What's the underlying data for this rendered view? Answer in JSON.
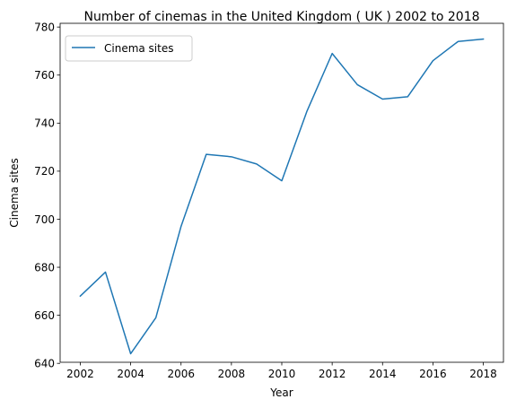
{
  "chart_data": {
    "type": "line",
    "title": "Number of cinemas in the United Kingdom ( UK ) 2002 to 2018",
    "xlabel": "Year",
    "ylabel": "Cinema sites",
    "x": [
      2002,
      2003,
      2004,
      2005,
      2006,
      2007,
      2008,
      2009,
      2010,
      2011,
      2012,
      2013,
      2014,
      2015,
      2016,
      2017,
      2018
    ],
    "series": [
      {
        "name": "Cinema sites",
        "color": "#1f77b4",
        "values": [
          668,
          678,
          644,
          659,
          697,
          727,
          726,
          723,
          716,
          745,
          769,
          756,
          750,
          751,
          766,
          774,
          775
        ]
      }
    ],
    "xticks": [
      "2002",
      "2004",
      "2006",
      "2008",
      "2010",
      "2012",
      "2014",
      "2016",
      "2018"
    ],
    "yticks": [
      "640",
      "660",
      "680",
      "700",
      "720",
      "740",
      "760",
      "780"
    ],
    "xlim": [
      2001.2,
      2018.8
    ],
    "ylim": [
      640.45,
      781.55
    ],
    "grid": false,
    "legend_position": "upper-left"
  }
}
